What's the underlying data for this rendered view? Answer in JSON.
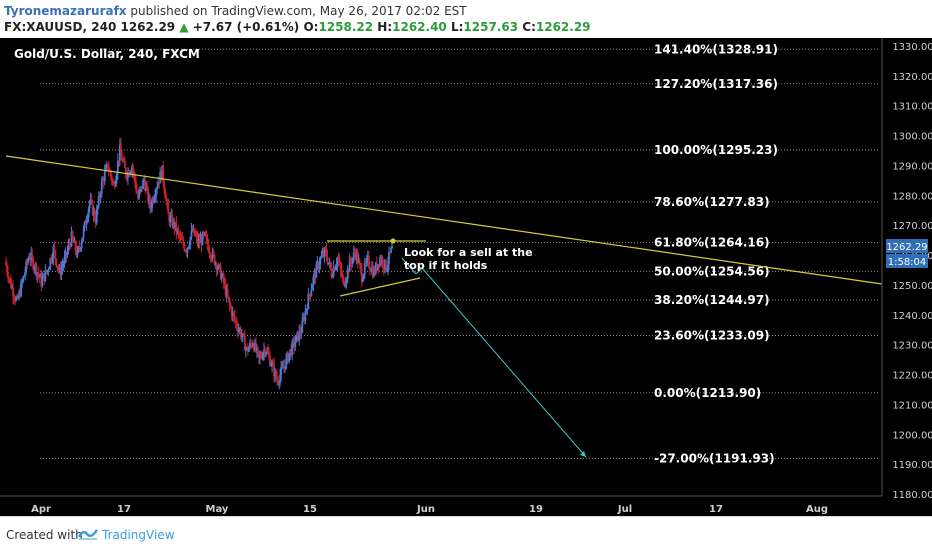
{
  "header": {
    "author": "Tyronemazarurafx",
    "published": "published on TradingView.com, May 26, 2017 02:02 EST",
    "symbol": "FX:XAUUSD, 240",
    "last": "1262.29",
    "change": "+7.67 (+0.61%)",
    "o_label": "O:",
    "o": "1258.22",
    "h_label": "H:",
    "h": "1262.40",
    "l_label": "L:",
    "l": "1257.63",
    "c_label": "C:",
    "c": "1262.29"
  },
  "footer": {
    "created_with": "Created with",
    "brand": "TradingView"
  },
  "colors": {
    "background": "#000000",
    "up": "#4a7bd8",
    "down": "#c8232c",
    "trendline": "#d4cf3c",
    "projection": "#3fc6c2",
    "grid": "#8a8a8a",
    "price_tag": "#2f6fb8"
  },
  "chart_data": {
    "type": "candlestick",
    "title": "Gold/U.S. Dollar, 240, FXCM",
    "ylim": [
      1175,
      1335
    ],
    "y_ticks": [
      "1330.00",
      "1320.00",
      "1310.00",
      "1300.00",
      "1290.00",
      "1280.00",
      "1270.00",
      "1260.00",
      "1250.00",
      "1240.00",
      "1230.00",
      "1220.00",
      "1210.00",
      "1200.00",
      "1190.00",
      "1180.00"
    ],
    "x_ticks": [
      "Apr",
      "17",
      "May",
      "15",
      "Jun",
      "19",
      "Jul",
      "17",
      "Aug"
    ],
    "fib_levels": [
      {
        "label": "141.40%(1328.91)",
        "value": 1328.91
      },
      {
        "label": "127.20%(1317.36)",
        "value": 1317.36
      },
      {
        "label": "100.00%(1295.23)",
        "value": 1295.23
      },
      {
        "label": "78.60%(1277.83)",
        "value": 1277.83
      },
      {
        "label": "61.80%(1264.16)",
        "value": 1264.16
      },
      {
        "label": "50.00%(1254.56)",
        "value": 1254.56
      },
      {
        "label": "38.20%(1244.97)",
        "value": 1244.97
      },
      {
        "label": "23.60%(1233.09)",
        "value": 1233.09
      },
      {
        "label": "0.00%(1213.90)",
        "value": 1213.9
      },
      {
        "label": "-27.00%(1191.93)",
        "value": 1191.93
      }
    ],
    "price_tag": "1262.29",
    "countdown": "1:58:04",
    "annotation": "Look for a sell at the top if it holds",
    "path": [
      1258,
      1250,
      1244,
      1252,
      1260,
      1256,
      1251,
      1255,
      1262,
      1254,
      1259,
      1266,
      1260,
      1268,
      1278,
      1272,
      1284,
      1290,
      1283,
      1295,
      1287,
      1290,
      1279,
      1285,
      1276,
      1283,
      1288,
      1273,
      1270,
      1265,
      1262,
      1268,
      1264,
      1266,
      1261,
      1257,
      1252,
      1244,
      1238,
      1234,
      1228,
      1231,
      1225,
      1229,
      1224,
      1218,
      1222,
      1227,
      1231,
      1235,
      1244,
      1252,
      1258,
      1261,
      1254,
      1259,
      1250,
      1257,
      1261,
      1253,
      1258,
      1254,
      1259,
      1256,
      1262
    ]
  }
}
